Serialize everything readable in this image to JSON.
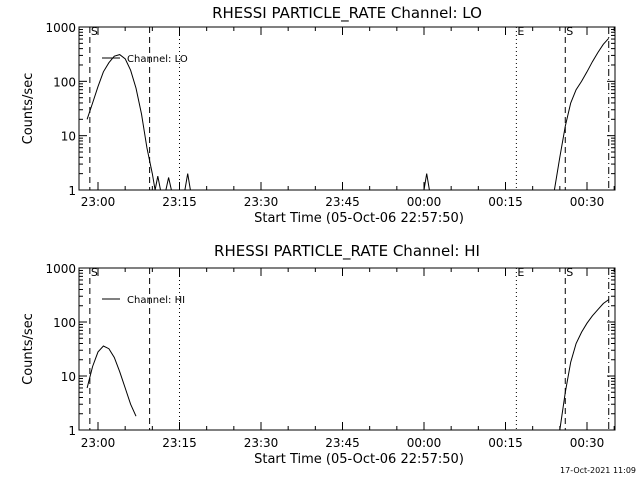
{
  "footer": {
    "timestamp": "17-Oct-2021 11:09"
  },
  "chart_data": [
    {
      "type": "line",
      "title": "RHESSI PARTICLE_RATE Channel: LO",
      "xlabel": "Start Time (05-Oct-06 22:57:50)",
      "ylabel": "Counts/sec",
      "y_scale": "log",
      "ylim": [
        1,
        1000
      ],
      "x_tick_labels": [
        "23:00",
        "23:15",
        "23:30",
        "23:45",
        "00:00",
        "00:15",
        "00:30"
      ],
      "y_tick_labels": [
        "1",
        "10",
        "100",
        "1000"
      ],
      "legend": {
        "entries": [
          "Channel: LO"
        ],
        "placement": "top-left"
      },
      "series": [
        {
          "name": "Channel: LO",
          "points": [
            [
              "22:58:00",
              20
            ],
            [
              "22:59:00",
              40
            ],
            [
              "23:00:00",
              80
            ],
            [
              "23:01:00",
              150
            ],
            [
              "23:02:00",
              220
            ],
            [
              "23:03:00",
              290
            ],
            [
              "23:04:00",
              310
            ],
            [
              "23:05:00",
              260
            ],
            [
              "23:06:00",
              160
            ],
            [
              "23:07:00",
              75
            ],
            [
              "23:08:00",
              25
            ],
            [
              "23:09:00",
              6
            ],
            [
              "23:10:00",
              2
            ],
            [
              "23:10:30",
              1
            ],
            [
              "23:11:00",
              1.8
            ],
            [
              "23:11:30",
              1
            ],
            [
              "23:12:30",
              1
            ],
            [
              "23:13:00",
              1.7
            ],
            [
              "23:13:30",
              1
            ],
            [
              "23:16:00",
              1
            ],
            [
              "23:16:30",
              2
            ],
            [
              "23:17:00",
              1
            ],
            [
              "00:00:00",
              1
            ],
            [
              "00:00:30",
              2
            ],
            [
              "00:01:00",
              1
            ],
            [
              "00:24:00",
              1
            ],
            [
              "00:25:00",
              4
            ],
            [
              "00:26:00",
              15
            ],
            [
              "00:27:00",
              40
            ],
            [
              "00:28:00",
              70
            ],
            [
              "00:29:00",
              100
            ],
            [
              "00:30:00",
              150
            ],
            [
              "00:31:00",
              230
            ],
            [
              "00:32:00",
              340
            ],
            [
              "00:33:00",
              480
            ],
            [
              "00:34:00",
              620
            ]
          ]
        }
      ],
      "markers": [
        {
          "time": "22:58:30",
          "style": "dashed",
          "label": "S"
        },
        {
          "time": "23:09:30",
          "style": "dashed",
          "label": ""
        },
        {
          "time": "23:15:00",
          "style": "dotted",
          "label": ""
        },
        {
          "time": "00:17:00",
          "style": "dotted",
          "label": "E"
        },
        {
          "time": "00:26:00",
          "style": "dashed",
          "label": "S"
        },
        {
          "time": "00:34:00",
          "style": "dashdot",
          "label": ""
        }
      ]
    },
    {
      "type": "line",
      "title": "RHESSI PARTICLE_RATE Channel: HI",
      "xlabel": "Start Time (05-Oct-06 22:57:50)",
      "ylabel": "Counts/sec",
      "y_scale": "log",
      "ylim": [
        1,
        1000
      ],
      "x_tick_labels": [
        "23:00",
        "23:15",
        "23:30",
        "23:45",
        "00:00",
        "00:15",
        "00:30"
      ],
      "y_tick_labels": [
        "1",
        "10",
        "100",
        "1000"
      ],
      "legend": {
        "entries": [
          "Channel: HI"
        ],
        "placement": "top-left"
      },
      "series": [
        {
          "name": "Channel: HI",
          "points": [
            [
              "22:58:00",
              6
            ],
            [
              "22:59:00",
              15
            ],
            [
              "23:00:00",
              28
            ],
            [
              "23:01:00",
              36
            ],
            [
              "23:02:00",
              32
            ],
            [
              "23:03:00",
              22
            ],
            [
              "23:04:00",
              12
            ],
            [
              "23:05:00",
              6
            ],
            [
              "23:06:00",
              3
            ],
            [
              "23:07:00",
              1.8
            ],
            [
              "00:25:00",
              1
            ],
            [
              "00:26:00",
              5
            ],
            [
              "00:27:00",
              18
            ],
            [
              "00:28:00",
              40
            ],
            [
              "00:29:00",
              65
            ],
            [
              "00:30:00",
              95
            ],
            [
              "00:31:00",
              130
            ],
            [
              "00:32:00",
              170
            ],
            [
              "00:33:00",
              220
            ],
            [
              "00:34:00",
              260
            ]
          ]
        }
      ],
      "markers": [
        {
          "time": "22:58:30",
          "style": "dashed",
          "label": "S"
        },
        {
          "time": "23:09:30",
          "style": "dashed",
          "label": ""
        },
        {
          "time": "23:15:00",
          "style": "dotted",
          "label": ""
        },
        {
          "time": "00:17:00",
          "style": "dotted",
          "label": "E"
        },
        {
          "time": "00:26:00",
          "style": "dashed",
          "label": "S"
        },
        {
          "time": "00:34:00",
          "style": "dashdot",
          "label": ""
        }
      ]
    }
  ]
}
